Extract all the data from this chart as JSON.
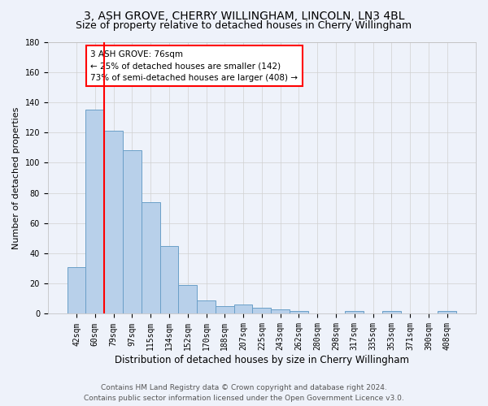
{
  "title": "3, ASH GROVE, CHERRY WILLINGHAM, LINCOLN, LN3 4BL",
  "subtitle": "Size of property relative to detached houses in Cherry Willingham",
  "xlabel": "Distribution of detached houses by size in Cherry Willingham",
  "ylabel": "Number of detached properties",
  "footer_line1": "Contains HM Land Registry data © Crown copyright and database right 2024.",
  "footer_line2": "Contains public sector information licensed under the Open Government Licence v3.0.",
  "bar_labels": [
    "42sqm",
    "60sqm",
    "79sqm",
    "97sqm",
    "115sqm",
    "134sqm",
    "152sqm",
    "170sqm",
    "188sqm",
    "207sqm",
    "225sqm",
    "243sqm",
    "262sqm",
    "280sqm",
    "298sqm",
    "317sqm",
    "335sqm",
    "353sqm",
    "371sqm",
    "390sqm",
    "408sqm"
  ],
  "bar_values": [
    31,
    135,
    121,
    108,
    74,
    45,
    19,
    9,
    5,
    6,
    4,
    3,
    2,
    0,
    0,
    2,
    0,
    2,
    0,
    0,
    2
  ],
  "bar_color": "#b8d0ea",
  "bar_edge_color": "#6a9fc8",
  "background_color": "#eef2fa",
  "grid_color": "#d0d0d0",
  "vline_color": "red",
  "vline_x": 1.5,
  "annotation_text": "3 ASH GROVE: 76sqm\n← 25% of detached houses are smaller (142)\n73% of semi-detached houses are larger (408) →",
  "ylim": [
    0,
    180
  ],
  "yticks": [
    0,
    20,
    40,
    60,
    80,
    100,
    120,
    140,
    160,
    180
  ],
  "title_fontsize": 10,
  "subtitle_fontsize": 9,
  "xlabel_fontsize": 8.5,
  "ylabel_fontsize": 8,
  "tick_fontsize": 7,
  "annot_fontsize": 7.5,
  "footer_fontsize": 6.5
}
